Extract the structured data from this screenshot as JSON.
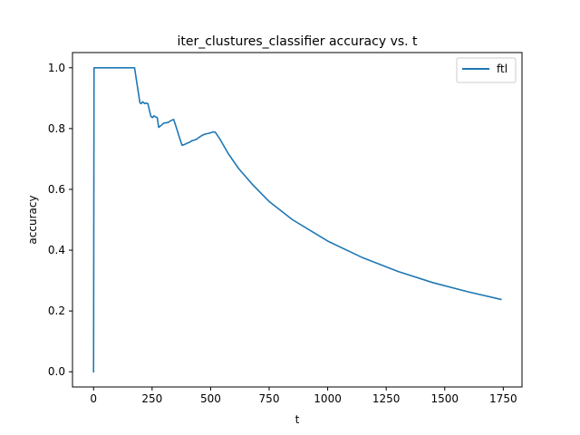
{
  "chart_data": {
    "type": "line",
    "title": "iter_clustures_classifier accuracy vs. t",
    "xlabel": "t",
    "ylabel": "accuracy",
    "xlim": [
      -90,
      1830
    ],
    "ylim": [
      -0.05,
      1.05
    ],
    "xticks": [
      0,
      250,
      500,
      750,
      1000,
      1250,
      1500,
      1750
    ],
    "yticks": [
      0.0,
      0.2,
      0.4,
      0.6,
      0.8,
      1.0
    ],
    "xtick_labels": [
      "0",
      "250",
      "500",
      "750",
      "1000",
      "1250",
      "1500",
      "1750"
    ],
    "ytick_labels": [
      "0.0",
      "0.2",
      "0.4",
      "0.6",
      "0.8",
      "1.0"
    ],
    "grid": false,
    "legend_position": "top-right",
    "series": [
      {
        "name": "ftl",
        "color": "#1f77b4",
        "x": [
          0,
          2,
          175,
          198,
          203,
          210,
          218,
          224,
          232,
          238,
          245,
          252,
          258,
          265,
          272,
          278,
          285,
          300,
          318,
          330,
          342,
          355,
          367,
          378,
          390,
          400,
          410,
          420,
          430,
          440,
          452,
          465,
          477,
          490,
          500,
          510,
          520,
          540,
          575,
          620,
          680,
          750,
          850,
          1000,
          1150,
          1300,
          1450,
          1600,
          1740
        ],
        "y": [
          0.0,
          1.0,
          1.0,
          0.885,
          0.882,
          0.888,
          0.882,
          0.884,
          0.882,
          0.862,
          0.84,
          0.836,
          0.842,
          0.838,
          0.836,
          0.804,
          0.808,
          0.818,
          0.82,
          0.826,
          0.83,
          0.8,
          0.77,
          0.745,
          0.748,
          0.752,
          0.755,
          0.76,
          0.762,
          0.765,
          0.772,
          0.778,
          0.782,
          0.784,
          0.786,
          0.789,
          0.788,
          0.765,
          0.718,
          0.668,
          0.615,
          0.56,
          0.5,
          0.43,
          0.375,
          0.33,
          0.293,
          0.263,
          0.238
        ]
      }
    ]
  }
}
